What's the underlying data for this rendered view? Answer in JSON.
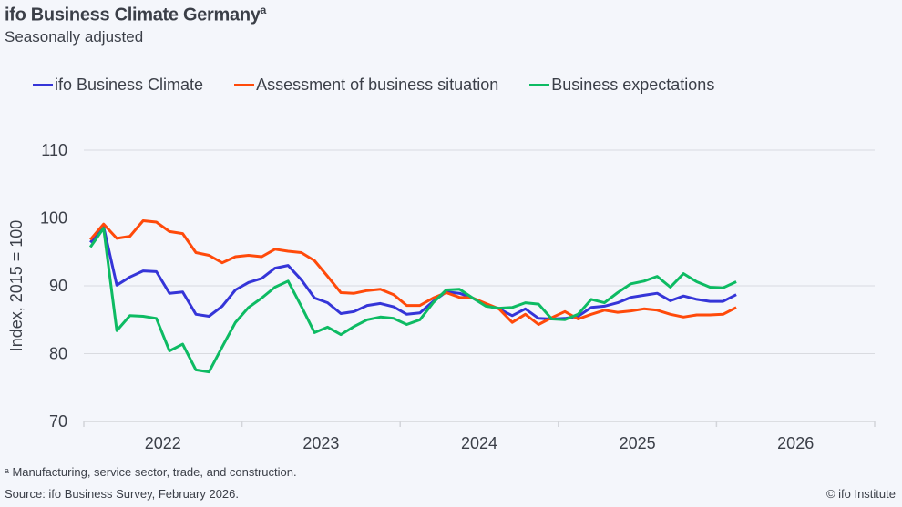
{
  "header": {
    "title": "ifo Business Climate Germany",
    "title_superscript": "a",
    "subtitle": "Seasonally adjusted"
  },
  "footer": {
    "footnote": "ᵃ Manufacturing, service sector, trade, and construction.",
    "source": "Source: ifo Business Survey, February 2026.",
    "credit": "© ifo Institute"
  },
  "chart_data": {
    "type": "line",
    "title": "ifo Business Climate Germany",
    "subtitle": "Seasonally adjusted",
    "xlabel": "",
    "ylabel": "Index, 2015 = 100",
    "ylim": [
      70,
      110
    ],
    "yticks": [
      70,
      80,
      90,
      100,
      110
    ],
    "xticks": [
      "2022",
      "2023",
      "2024",
      "2025",
      "2026"
    ],
    "xrange": [
      "2022-01",
      "2026-12"
    ],
    "x_start": "2022-01",
    "x_end": "2026-02",
    "frequency": "monthly",
    "grid": "horizontal",
    "legend_position": "top",
    "series": [
      {
        "name": "ifo Business Climate",
        "color": "#3535d8",
        "values": [
          96.4,
          98.7,
          90.1,
          91.3,
          92.2,
          92.1,
          88.9,
          89.1,
          85.8,
          85.5,
          87.0,
          89.4,
          90.5,
          91.1,
          92.6,
          93.0,
          90.9,
          88.2,
          87.5,
          85.9,
          86.2,
          87.1,
          87.4,
          86.9,
          85.8,
          86.0,
          87.7,
          89.1,
          88.9,
          88.2,
          87.1,
          86.6,
          85.6,
          86.6,
          85.2,
          85.1,
          85.2,
          85.5,
          86.8,
          87.0,
          87.5,
          88.3,
          88.6,
          88.9,
          87.8,
          88.5,
          88.0,
          87.7,
          87.7,
          88.7
        ]
      },
      {
        "name": "Assessment of business situation",
        "color": "#ff4a0a",
        "values": [
          96.8,
          99.1,
          97.0,
          97.3,
          99.6,
          99.4,
          98.0,
          97.7,
          94.9,
          94.5,
          93.4,
          94.3,
          94.5,
          94.3,
          95.4,
          95.1,
          94.9,
          93.7,
          91.4,
          89.0,
          88.9,
          89.3,
          89.5,
          88.7,
          87.1,
          87.1,
          88.2,
          89.0,
          88.3,
          88.2,
          87.4,
          86.6,
          84.6,
          85.8,
          84.3,
          85.3,
          86.2,
          85.1,
          85.8,
          86.4,
          86.1,
          86.3,
          86.6,
          86.4,
          85.8,
          85.4,
          85.7,
          85.7,
          85.8,
          86.8
        ]
      },
      {
        "name": "Business expectations",
        "color": "#0dbb63",
        "values": [
          95.7,
          98.5,
          83.4,
          85.6,
          85.5,
          85.2,
          80.4,
          81.4,
          77.6,
          77.3,
          81.0,
          84.6,
          86.8,
          88.2,
          89.8,
          90.7,
          87.0,
          83.1,
          83.9,
          82.8,
          84.0,
          85.0,
          85.4,
          85.2,
          84.3,
          85.0,
          87.5,
          89.4,
          89.5,
          88.2,
          87.0,
          86.7,
          86.8,
          87.5,
          87.3,
          85.1,
          85.0,
          85.8,
          88.0,
          87.5,
          89.0,
          90.3,
          90.7,
          91.4,
          89.8,
          91.8,
          90.6,
          89.8,
          89.7,
          90.6
        ]
      }
    ]
  }
}
